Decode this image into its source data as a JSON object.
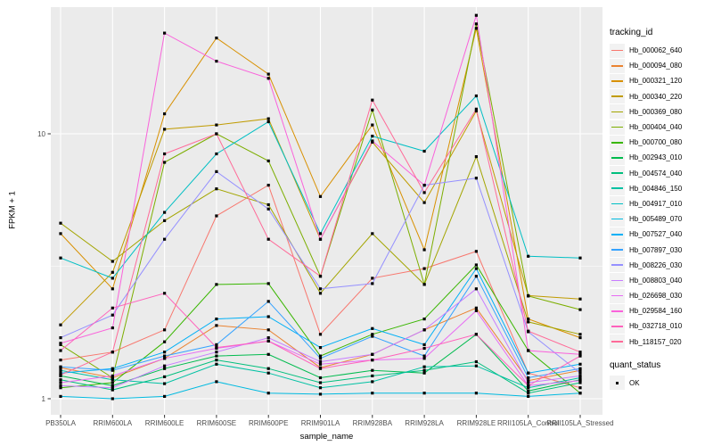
{
  "figure": {
    "background": "#FFFFFF",
    "panel_background": "#EBEBEB",
    "gridline_color": "#FFFFFF",
    "tick_label_color": "#4D4D4D",
    "point_color": "#000000"
  },
  "axes": {
    "x_title": "sample_name",
    "y_title": "FPKM + 1",
    "y_tick_labels": [
      "10",
      "1"
    ]
  },
  "legend": {
    "tracking_title": "tracking_id",
    "quant_title": "quant_status",
    "quant_items": [
      {
        "label": "OK",
        "symbol": "black-square"
      }
    ]
  },
  "chart_data": {
    "type": "line",
    "title": "",
    "xlabel": "sample_name",
    "ylabel": "FPKM + 1",
    "x_categories": [
      "PB350LA",
      "RRIM600LA",
      "RRIM600LE",
      "RRIM600SE",
      "RRIM600PE",
      "RRIM901LA",
      "RRIM928BA",
      "RRIM928LA",
      "RRIM928LE",
      "RRII105LA_Control",
      "RRII105LA_Stressed"
    ],
    "y_scale": "log10",
    "y_ticks": [
      1,
      10
    ],
    "y_minor_breaks": [
      3.162
    ],
    "ylim": [
      0.93,
      30
    ],
    "grid": true,
    "legend_position": "right",
    "point_marker": "filled-black-square (quant_status = OK)",
    "series": [
      {
        "name": "Hb_000062_640",
        "color": "#F8766D",
        "values": [
          1.4,
          1.5,
          1.82,
          4.9,
          6.4,
          1.75,
          2.85,
          3.1,
          3.6,
          1.25,
          1.1
        ]
      },
      {
        "name": "Hb_000094_080",
        "color": "#EA8331",
        "values": [
          1.31,
          1.2,
          1.42,
          1.89,
          1.82,
          1.31,
          1.47,
          1.82,
          2.2,
          1.17,
          1.28
        ]
      },
      {
        "name": "Hb_000321_120",
        "color": "#D89000",
        "values": [
          4.2,
          2.6,
          11.9,
          23.0,
          16.8,
          5.8,
          10.8,
          3.65,
          25.0,
          2.0,
          1.7
        ]
      },
      {
        "name": "Hb_000340_220",
        "color": "#C09B00",
        "values": [
          1.9,
          3.0,
          10.4,
          10.8,
          11.4,
          4.0,
          9.3,
          5.5,
          12.2,
          2.45,
          2.38
        ]
      },
      {
        "name": "Hb_000369_080",
        "color": "#A3A500",
        "values": [
          4.6,
          3.3,
          4.7,
          6.2,
          5.4,
          2.5,
          4.2,
          2.7,
          8.2,
          1.95,
          1.75
        ]
      },
      {
        "name": "Hb_000404_040",
        "color": "#7CAE00",
        "values": [
          1.6,
          1.2,
          7.8,
          10.0,
          7.9,
          2.9,
          12.3,
          2.7,
          26.0,
          2.44,
          2.17
        ]
      },
      {
        "name": "Hb_000700_080",
        "color": "#39B600",
        "values": [
          1.1,
          1.15,
          1.64,
          2.7,
          2.72,
          1.45,
          1.75,
          2.0,
          3.2,
          1.52,
          1.05
        ]
      },
      {
        "name": "Hb_002943_010",
        "color": "#00BB4E",
        "values": [
          1.22,
          1.12,
          1.3,
          1.45,
          1.47,
          1.2,
          1.28,
          1.25,
          1.75,
          1.07,
          1.18
        ]
      },
      {
        "name": "Hb_004574_040",
        "color": "#00BF7D",
        "values": [
          1.18,
          1.08,
          1.21,
          1.4,
          1.3,
          1.15,
          1.22,
          1.28,
          1.38,
          1.05,
          1.15
        ]
      },
      {
        "name": "Hb_004846_150",
        "color": "#00C1A3",
        "values": [
          1.28,
          1.18,
          1.14,
          1.35,
          1.25,
          1.1,
          1.16,
          1.32,
          1.33,
          1.1,
          1.2
        ]
      },
      {
        "name": "Hb_004917_010",
        "color": "#00BFC4",
        "values": [
          3.4,
          2.85,
          5.05,
          8.4,
          11.1,
          4.2,
          9.8,
          8.6,
          13.9,
          3.45,
          3.4
        ]
      },
      {
        "name": "Hb_005489_070",
        "color": "#00BAE0",
        "values": [
          1.02,
          1.0,
          1.02,
          1.16,
          1.05,
          1.04,
          1.05,
          1.05,
          1.05,
          1.02,
          1.05
        ]
      },
      {
        "name": "Hb_007527_040",
        "color": "#00B0F6",
        "values": [
          1.25,
          1.3,
          1.5,
          2.0,
          2.04,
          1.56,
          1.84,
          1.6,
          3.1,
          1.25,
          1.35
        ]
      },
      {
        "name": "Hb_007897_030",
        "color": "#35A2FF",
        "values": [
          1.32,
          1.28,
          1.45,
          1.6,
          2.33,
          1.42,
          1.72,
          1.45,
          2.9,
          1.2,
          1.3
        ]
      },
      {
        "name": "Hb_008226_030",
        "color": "#9590FF",
        "values": [
          1.7,
          2.07,
          4.0,
          7.2,
          5.2,
          2.6,
          2.72,
          6.4,
          6.8,
          1.79,
          1.25
        ]
      },
      {
        "name": "Hb_008803_040",
        "color": "#C77CFF",
        "values": [
          1.12,
          1.1,
          1.33,
          1.5,
          1.7,
          1.38,
          1.47,
          1.82,
          2.6,
          1.15,
          1.22
        ]
      },
      {
        "name": "Hb_026698_030",
        "color": "#E76BF3",
        "values": [
          1.15,
          1.22,
          1.42,
          1.55,
          1.65,
          1.35,
          1.4,
          1.42,
          2.15,
          1.12,
          1.17
        ]
      },
      {
        "name": "Hb_029584_160",
        "color": "#FA62DB",
        "values": [
          1.62,
          1.85,
          24.0,
          18.8,
          16.2,
          4.0,
          9.4,
          6.4,
          28.0,
          1.52,
          1.47
        ]
      },
      {
        "name": "Hb_032718_010",
        "color": "#FF62BC",
        "values": [
          1.52,
          2.2,
          2.5,
          1.56,
          1.65,
          1.3,
          1.4,
          1.55,
          1.75,
          1.12,
          1.45
        ]
      },
      {
        "name": "Hb_118157_020",
        "color": "#FF6A98",
        "values": [
          1.23,
          1.5,
          8.4,
          10.0,
          4.0,
          2.9,
          13.4,
          6.0,
          12.4,
          1.8,
          1.5
        ]
      }
    ]
  }
}
